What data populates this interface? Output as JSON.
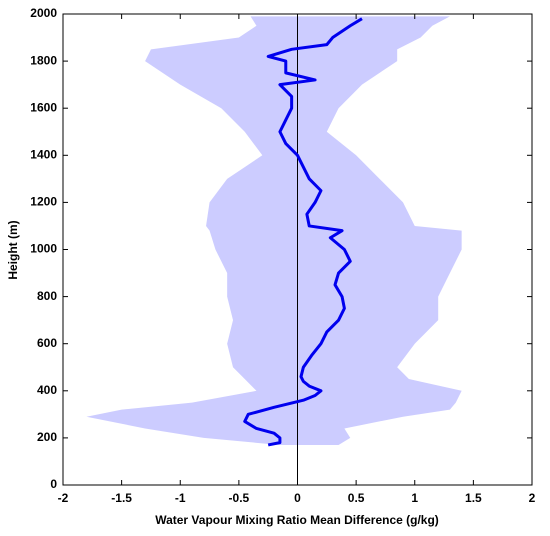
{
  "chart_data": {
    "type": "line",
    "xlabel": "Water Vapour Mixing Ratio Mean Difference (g/kg)",
    "ylabel": "Height (m)",
    "xlim": [
      -2,
      2
    ],
    "ylim": [
      0,
      2000
    ],
    "xticks": [
      -2,
      -1.5,
      -1,
      -0.5,
      0,
      0.5,
      1,
      1.5,
      2
    ],
    "yticks": [
      0,
      200,
      400,
      600,
      800,
      1000,
      1200,
      1400,
      1600,
      1800,
      2000
    ],
    "band": {
      "color": "#ccccff",
      "heights": [
        170,
        200,
        240,
        290,
        320,
        350,
        400,
        450,
        500,
        600,
        700,
        800,
        900,
        1000,
        1080,
        1100,
        1200,
        1300,
        1400,
        1500,
        1600,
        1700,
        1800,
        1850,
        1900,
        1950,
        1990
      ],
      "lower": [
        -0.15,
        -0.8,
        -1.3,
        -1.8,
        -1.5,
        -0.9,
        -0.35,
        -0.45,
        -0.55,
        -0.6,
        -0.55,
        -0.6,
        -0.6,
        -0.7,
        -0.75,
        -0.78,
        -0.75,
        -0.6,
        -0.3,
        -0.45,
        -0.65,
        -1.0,
        -1.3,
        -1.25,
        -0.5,
        -0.35,
        -0.4
      ],
      "upper": [
        0.35,
        0.45,
        0.4,
        0.9,
        1.3,
        1.35,
        1.4,
        0.95,
        0.85,
        1.0,
        1.2,
        1.2,
        1.3,
        1.4,
        1.4,
        1.0,
        0.9,
        0.7,
        0.5,
        0.25,
        0.35,
        0.55,
        0.85,
        0.85,
        1.05,
        1.15,
        1.3
      ]
    },
    "series": [
      {
        "color": "#0000ee",
        "heights": [
          170,
          180,
          200,
          220,
          240,
          270,
          300,
          330,
          360,
          380,
          400,
          420,
          440,
          460,
          500,
          550,
          600,
          650,
          700,
          750,
          800,
          850,
          900,
          950,
          1000,
          1050,
          1080,
          1100,
          1150,
          1200,
          1250,
          1300,
          1350,
          1400,
          1450,
          1500,
          1550,
          1600,
          1650,
          1700,
          1720,
          1750,
          1800,
          1820,
          1850,
          1870,
          1900,
          1950,
          1980
        ],
        "values": [
          -0.25,
          -0.15,
          -0.15,
          -0.2,
          -0.35,
          -0.45,
          -0.42,
          -0.2,
          0.05,
          0.15,
          0.2,
          0.1,
          0.05,
          0.03,
          0.05,
          0.12,
          0.2,
          0.25,
          0.35,
          0.4,
          0.38,
          0.32,
          0.35,
          0.45,
          0.4,
          0.28,
          0.38,
          0.1,
          0.08,
          0.15,
          0.2,
          0.1,
          0.05,
          0.0,
          -0.1,
          -0.15,
          -0.1,
          -0.05,
          -0.05,
          -0.15,
          0.15,
          -0.1,
          -0.1,
          -0.25,
          -0.05,
          0.25,
          0.3,
          0.45,
          0.55
        ]
      }
    ]
  }
}
